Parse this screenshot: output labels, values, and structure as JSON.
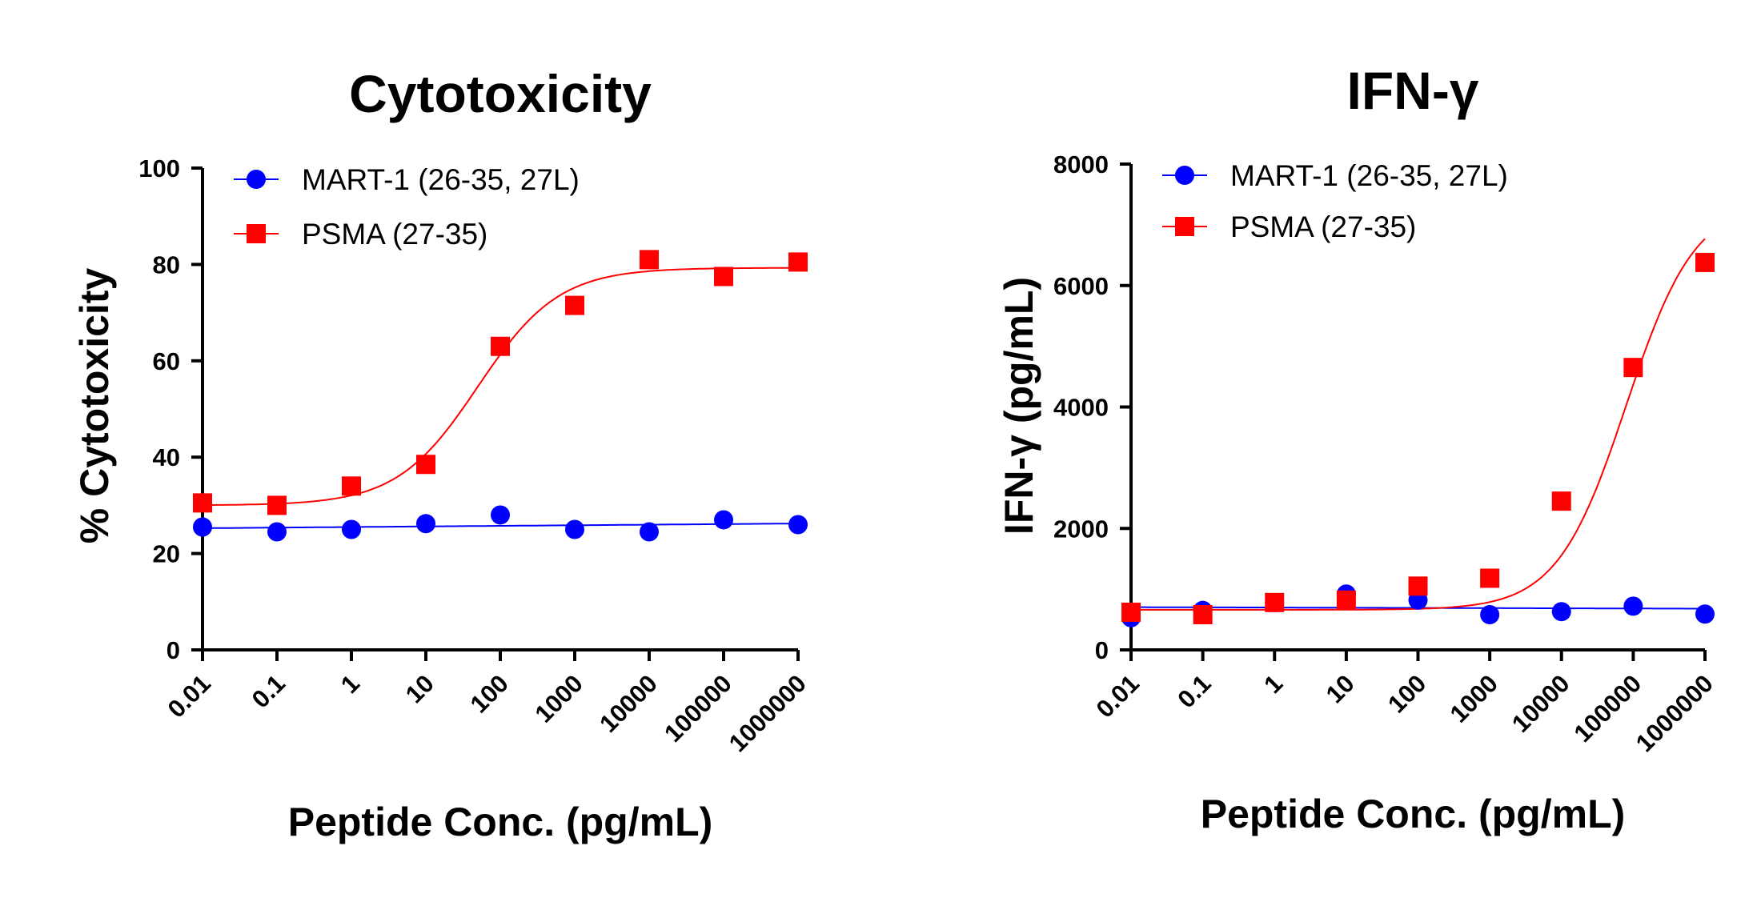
{
  "chart_data": [
    {
      "type": "scatter",
      "title": "Cytotoxicity",
      "xlabel": "Peptide Conc. (pg/mL)",
      "ylabel": "% Cytotoxicity",
      "x_scale": "log",
      "x_ticks": [
        "0.01",
        "0.1",
        "1",
        "10",
        "100",
        "1000",
        "10000",
        "100000",
        "1000000"
      ],
      "x": [
        0.01,
        0.1,
        1,
        10,
        100,
        1000,
        10000,
        100000,
        1000000
      ],
      "xlim": [
        0.01,
        1000000
      ],
      "ylim": [
        0,
        100
      ],
      "y_ticks": [
        0,
        20,
        40,
        60,
        80,
        100
      ],
      "legend_position": "top-left",
      "grid": false,
      "series": [
        {
          "name": "MART-1 (26-35, 27L)",
          "marker": "circle",
          "color": "#0000ff",
          "values": [
            25.5,
            24.5,
            25.0,
            26.2,
            28.0,
            25.0,
            24.5,
            27.0,
            26.0
          ],
          "fit": "linear"
        },
        {
          "name": "PSMA (27-35)",
          "marker": "square",
          "color": "#ff0000",
          "values": [
            30.5,
            30.0,
            34.0,
            38.5,
            63.0,
            71.5,
            81.0,
            77.5,
            80.5
          ],
          "fit": {
            "type": "sigmoid",
            "bottom": 30.0,
            "top": 79.3,
            "ec50": 50,
            "hill": 0.8
          }
        }
      ]
    },
    {
      "type": "scatter",
      "title": "IFN-γ",
      "xlabel": "Peptide Conc. (pg/mL)",
      "ylabel": "IFN-γ (pg/mL)",
      "x_scale": "log",
      "x_ticks": [
        "0.01",
        "0.1",
        "1",
        "10",
        "100",
        "1000",
        "10000",
        "100000",
        "1000000"
      ],
      "x": [
        0.01,
        0.1,
        1,
        10,
        100,
        1000,
        10000,
        100000,
        1000000
      ],
      "xlim": [
        0.01,
        1000000
      ],
      "ylim": [
        0,
        8000
      ],
      "y_ticks": [
        0,
        2000,
        4000,
        6000,
        8000
      ],
      "legend_position": "top-left",
      "grid": false,
      "series": [
        {
          "name": "MART-1 (26-35, 27L)",
          "marker": "circle",
          "color": "#0000ff",
          "values": [
            530,
            650,
            780,
            920,
            820,
            580,
            630,
            720,
            590
          ],
          "fit": "linear"
        },
        {
          "name": "PSMA (27-35)",
          "marker": "square",
          "color": "#ff0000",
          "values": [
            620,
            580,
            780,
            820,
            1050,
            1180,
            2450,
            4650,
            6380
          ],
          "fit": {
            "type": "sigmoid",
            "bottom": 660,
            "top": 7400,
            "ec50": 80000,
            "hill": 0.9
          }
        }
      ]
    }
  ]
}
